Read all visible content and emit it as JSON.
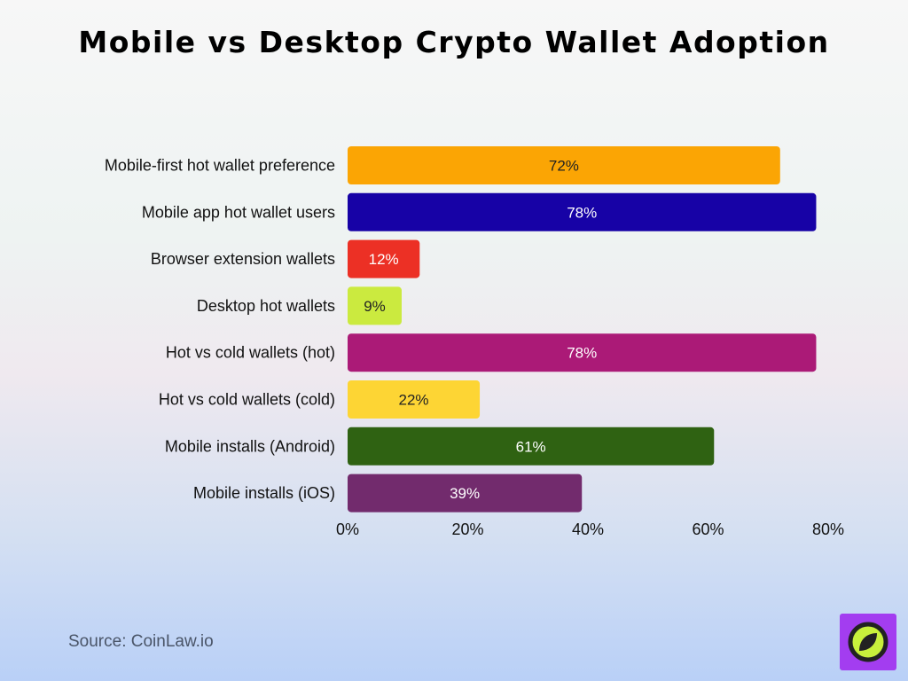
{
  "chart_data": {
    "type": "bar",
    "orientation": "horizontal",
    "title": "Mobile vs Desktop Crypto Wallet Adoption",
    "categories": [
      "Mobile-first hot wallet preference",
      "Mobile app hot wallet users",
      "Browser extension wallets",
      "Desktop hot wallets",
      "Hot vs cold wallets (hot)",
      "Hot vs cold wallets (cold)",
      "Mobile installs (Android)",
      "Mobile installs (iOS)"
    ],
    "values": [
      72,
      78,
      12,
      9,
      78,
      22,
      61,
      39
    ],
    "data_labels": [
      "72%",
      "78%",
      "12%",
      "9%",
      "78%",
      "22%",
      "61%",
      "39%"
    ],
    "colors": [
      "#fba504",
      "#1702a6",
      "#ec3025",
      "#cbea3f",
      "#ab1a77",
      "#fdd534",
      "#2f6212",
      "#722b6d"
    ],
    "label_colors": [
      "#222222",
      "#ffffff",
      "#ffffff",
      "#222222",
      "#ffffff",
      "#222222",
      "#ffffff",
      "#ffffff"
    ],
    "xticks": [
      0,
      20,
      40,
      60,
      80
    ],
    "xtick_labels": [
      "0%",
      "20%",
      "40%",
      "60%",
      "80%"
    ],
    "xlim": [
      0,
      80
    ],
    "grid": false,
    "legend": "none"
  },
  "source": "Source: CoinLaw.io",
  "logo": {
    "icon": "compass-icon",
    "bg": "#a33df0",
    "ring": "#222222",
    "fill": "#c8f03c"
  }
}
